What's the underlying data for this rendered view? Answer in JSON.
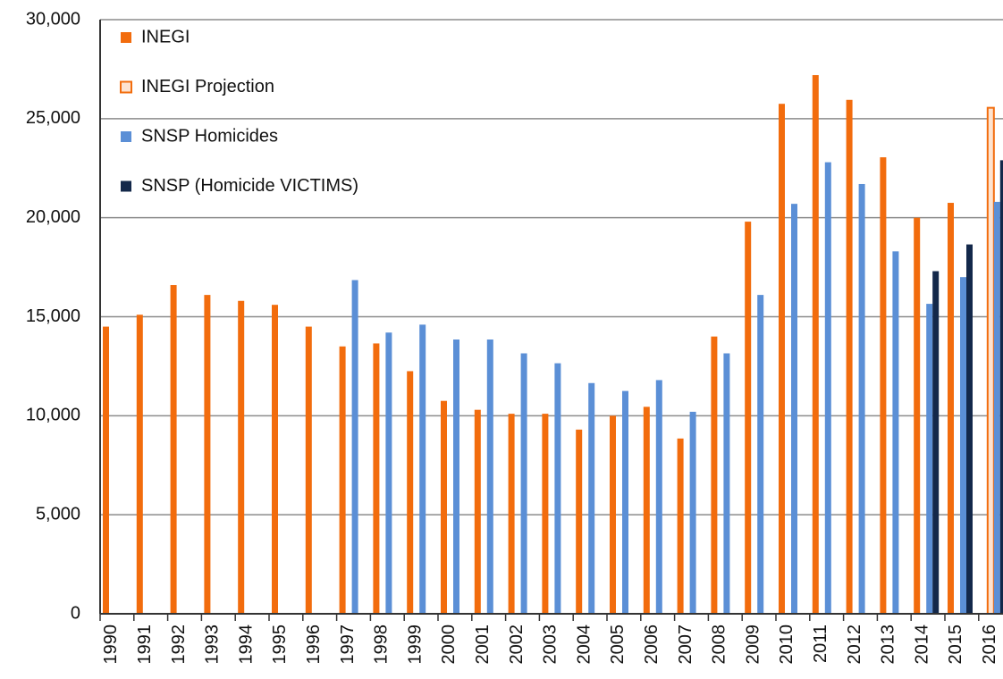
{
  "chart_data": {
    "type": "bar",
    "categories": [
      "1990",
      "1991",
      "1992",
      "1993",
      "1994",
      "1995",
      "1996",
      "1997",
      "1998",
      "1999",
      "2000",
      "2001",
      "2002",
      "2003",
      "2004",
      "2005",
      "2006",
      "2007",
      "2008",
      "2009",
      "2010",
      "2011",
      "2012",
      "2013",
      "2014",
      "2015",
      "2016"
    ],
    "series": [
      {
        "name": "INEGI",
        "color": "#f26c0d",
        "values": [
          14500,
          15100,
          16600,
          16100,
          15800,
          15600,
          14500,
          13500,
          13650,
          12250,
          10750,
          10300,
          10100,
          10100,
          9300,
          10000,
          10450,
          8850,
          14000,
          19800,
          25750,
          27200,
          25950,
          23050,
          20000,
          20750,
          null
        ]
      },
      {
        "name": "INEGI Projection",
        "color": "#f26c0d",
        "fill": "#fde3d0",
        "values": [
          null,
          null,
          null,
          null,
          null,
          null,
          null,
          null,
          null,
          null,
          null,
          null,
          null,
          null,
          null,
          null,
          null,
          null,
          null,
          null,
          null,
          null,
          null,
          null,
          null,
          null,
          25550
        ]
      },
      {
        "name": "SNSP Homicides",
        "color": "#5b8fd6",
        "values": [
          null,
          null,
          null,
          null,
          null,
          null,
          null,
          16850,
          14200,
          14600,
          13850,
          13850,
          13150,
          12650,
          11650,
          11250,
          11800,
          10200,
          13150,
          16100,
          20700,
          22800,
          21700,
          18300,
          15650,
          17000,
          20800
        ]
      },
      {
        "name": "SNSP (Homicide VICTIMS)",
        "color": "#13284a",
        "values": [
          null,
          null,
          null,
          null,
          null,
          null,
          null,
          null,
          null,
          null,
          null,
          null,
          null,
          null,
          null,
          null,
          null,
          null,
          null,
          null,
          null,
          null,
          null,
          null,
          17300,
          18650,
          22900
        ]
      }
    ],
    "ylim": [
      0,
      30000
    ],
    "yticks": [
      0,
      {
        "value": 5000,
        "label": "5,000"
      },
      {
        "value": 10000,
        "label": "10,000"
      },
      {
        "value": 15000,
        "label": "15,000"
      },
      {
        "value": 20000,
        "label": "20,000"
      },
      {
        "value": 25000,
        "label": "25,000"
      },
      {
        "value": 30000,
        "label": "30,000"
      }
    ],
    "grid": true,
    "legend": "top-left"
  }
}
